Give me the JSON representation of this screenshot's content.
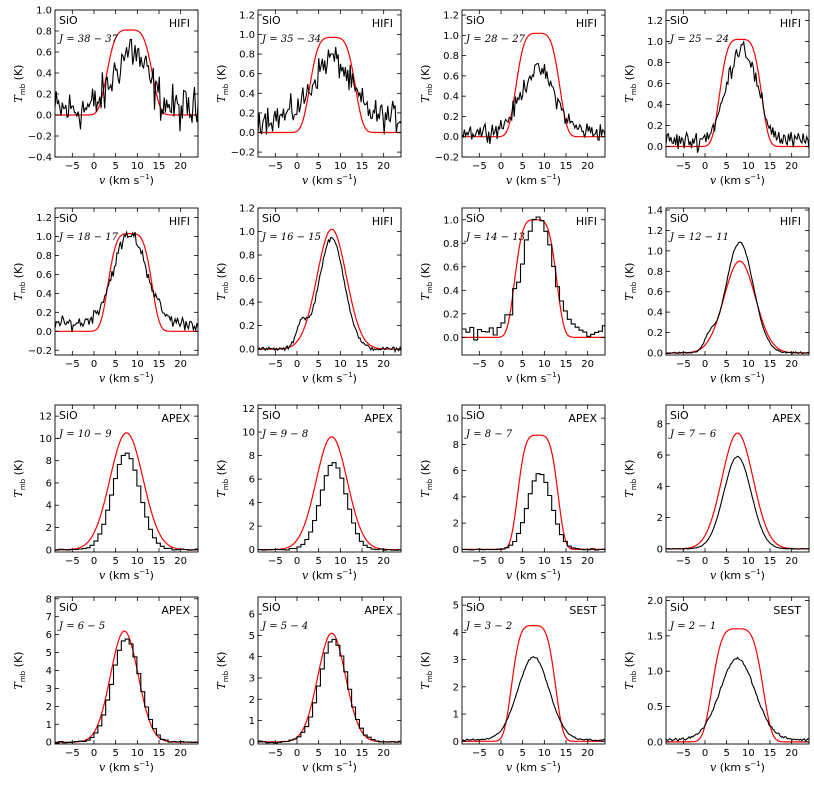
{
  "figure": {
    "xlabel_var": "v",
    "xlabel_units": "(km s",
    "xlabel_exp": "−1",
    "xlabel_close": ")",
    "ylabel_var": "T",
    "ylabel_sub": "mb",
    "ylabel_units": "(K)",
    "species": "SiO",
    "colors": {
      "observed": "#000000",
      "model": "#ff0000"
    }
  },
  "chart_data": [
    {
      "type": "line",
      "molecule": "SiO",
      "transition": "J = 38 − 37",
      "telescope": "HIFI",
      "xlim": [
        -9,
        24
      ],
      "ylim": [
        -0.4,
        1.0
      ],
      "xticks": [
        -5,
        0,
        5,
        10,
        15,
        20
      ],
      "xticklabels": [
        "−5",
        "0",
        "5",
        "10",
        "15",
        "20"
      ],
      "yticks": [
        -0.4,
        -0.2,
        0.0,
        0.2,
        0.4,
        0.6,
        0.8,
        1.0
      ],
      "yticklabels": [
        "−0.4",
        "−0.2",
        "0.0",
        "0.2",
        "0.4",
        "0.6",
        "0.8",
        "1.0"
      ],
      "observed": {
        "shape": "gauss",
        "peak": 0.55,
        "center": 8.5,
        "fwhm": 9,
        "base": 0.05,
        "noise": 0.18,
        "spike": 0.72,
        "hist": false
      },
      "model": {
        "shape": "flat",
        "peak": 0.81,
        "center": 8.2,
        "halfwidth": 5.2,
        "base": 0.0
      }
    },
    {
      "type": "line",
      "molecule": "SiO",
      "transition": "J = 35 − 34",
      "telescope": "HIFI",
      "xlim": [
        -9,
        24
      ],
      "ylim": [
        -0.25,
        1.25
      ],
      "xticks": [
        -5,
        0,
        5,
        10,
        15,
        20
      ],
      "xticklabels": [
        "−5",
        "0",
        "5",
        "10",
        "15",
        "20"
      ],
      "yticks": [
        -0.2,
        0.0,
        0.2,
        0.4,
        0.6,
        0.8,
        1.0,
        1.2
      ],
      "yticklabels": [
        "−0.2",
        "0.0",
        "0.2",
        "0.4",
        "0.6",
        "0.8",
        "1.0",
        "1.2"
      ],
      "observed": {
        "shape": "gauss",
        "peak": 0.6,
        "center": 8.0,
        "fwhm": 10,
        "base": 0.15,
        "noise": 0.13,
        "spike": 0.8,
        "hist": false
      },
      "model": {
        "shape": "flat",
        "peak": 0.97,
        "center": 8.2,
        "halfwidth": 5.2,
        "base": 0.0
      }
    },
    {
      "type": "line",
      "molecule": "SiO",
      "transition": "J = 28 − 27",
      "telescope": "HIFI",
      "xlim": [
        -9,
        24
      ],
      "ylim": [
        -0.2,
        1.25
      ],
      "xticks": [
        -5,
        0,
        5,
        10,
        15,
        20
      ],
      "xticklabels": [
        "−5",
        "0",
        "5",
        "10",
        "15",
        "20"
      ],
      "yticks": [
        -0.2,
        0.0,
        0.2,
        0.4,
        0.6,
        0.8,
        1.0,
        1.2
      ],
      "yticklabels": [
        "−0.2",
        "0.0",
        "0.2",
        "0.4",
        "0.6",
        "0.8",
        "1.0",
        "1.2"
      ],
      "observed": {
        "shape": "gauss",
        "peak": 0.62,
        "center": 8.5,
        "fwhm": 9,
        "base": 0.05,
        "noise": 0.08,
        "spike": 0.72,
        "hist": false
      },
      "model": {
        "shape": "flat",
        "peak": 1.02,
        "center": 8.5,
        "halfwidth": 5.0,
        "base": 0.0
      }
    },
    {
      "type": "line",
      "molecule": "SiO",
      "transition": "J = 25 − 24",
      "telescope": "HIFI",
      "xlim": [
        -9,
        24
      ],
      "ylim": [
        -0.1,
        1.3
      ],
      "xticks": [
        -5,
        0,
        5,
        10,
        15,
        20
      ],
      "xticklabels": [
        "−5",
        "0",
        "5",
        "10",
        "15",
        "20"
      ],
      "yticks": [
        0.0,
        0.2,
        0.4,
        0.6,
        0.8,
        1.0,
        1.2
      ],
      "yticklabels": [
        "0.0",
        "0.2",
        "0.4",
        "0.6",
        "0.8",
        "1.0",
        "1.2"
      ],
      "observed": {
        "shape": "gauss",
        "peak": 0.9,
        "center": 8.5,
        "fwhm": 8,
        "base": 0.05,
        "noise": 0.08,
        "spike": 0.97,
        "hist": false
      },
      "model": {
        "shape": "flat",
        "peak": 1.02,
        "center": 8.2,
        "halfwidth": 4.8,
        "base": 0.0
      }
    },
    {
      "type": "line",
      "molecule": "SiO",
      "transition": "J = 18 − 17",
      "telescope": "HIFI",
      "xlim": [
        -9,
        24
      ],
      "ylim": [
        -0.25,
        1.3
      ],
      "xticks": [
        -5,
        0,
        5,
        10,
        15,
        20
      ],
      "xticklabels": [
        "−5",
        "0",
        "5",
        "10",
        "15",
        "20"
      ],
      "yticks": [
        -0.2,
        0.0,
        0.2,
        0.4,
        0.6,
        0.8,
        1.0,
        1.2
      ],
      "yticklabels": [
        "−0.2",
        "0.0",
        "0.2",
        "0.4",
        "0.6",
        "0.8",
        "1.0",
        "1.2"
      ],
      "observed": {
        "shape": "gauss",
        "peak": 0.95,
        "center": 8.3,
        "fwhm": 9,
        "base": 0.08,
        "noise": 0.06,
        "spike": 1.0,
        "hist": false
      },
      "model": {
        "shape": "flat",
        "peak": 1.03,
        "center": 8.3,
        "halfwidth": 5.0,
        "base": 0.0
      }
    },
    {
      "type": "line",
      "molecule": "SiO",
      "transition": "J = 16 − 15",
      "telescope": "HIFI",
      "xlim": [
        -9,
        24
      ],
      "ylim": [
        -0.05,
        1.2
      ],
      "xticks": [
        -5,
        0,
        5,
        10,
        15,
        20
      ],
      "xticklabels": [
        "−5",
        "0",
        "5",
        "10",
        "15",
        "20"
      ],
      "yticks": [
        0.0,
        0.2,
        0.4,
        0.6,
        0.8,
        1.0,
        1.2
      ],
      "yticklabels": [
        "0.0",
        "0.2",
        "0.4",
        "0.6",
        "0.8",
        "1.0",
        "1.2"
      ],
      "observed": {
        "shape": "gauss",
        "peak": 0.94,
        "center": 8.0,
        "fwhm": 7,
        "base": 0.0,
        "noise": 0.015,
        "spike": 0,
        "hist": false,
        "bump": 0.2
      },
      "model": {
        "shape": "gauss",
        "peak": 1.02,
        "center": 8.0,
        "fwhm": 8.0,
        "base": 0.0
      }
    },
    {
      "type": "line",
      "molecule": "SiO",
      "transition": "J = 14 − 13",
      "telescope": "HIFI",
      "xlim": [
        -9,
        24
      ],
      "ylim": [
        -0.15,
        1.1
      ],
      "xticks": [
        -5,
        0,
        5,
        10,
        15,
        20
      ],
      "xticklabels": [
        "−5",
        "0",
        "5",
        "10",
        "15",
        "20"
      ],
      "yticks": [
        0.0,
        0.2,
        0.4,
        0.6,
        0.8,
        1.0
      ],
      "yticklabels": [
        "0.0",
        "0.2",
        "0.4",
        "0.6",
        "0.8",
        "1.0"
      ],
      "observed": {
        "shape": "gauss",
        "peak": 0.98,
        "center": 8.0,
        "fwhm": 8,
        "base": 0.05,
        "noise": 0.05,
        "spike": 0,
        "hist": true
      },
      "model": {
        "shape": "flat",
        "peak": 1.0,
        "center": 8.0,
        "halfwidth": 4.8,
        "base": 0.0
      }
    },
    {
      "type": "line",
      "molecule": "SiO",
      "transition": "J = 12 − 11",
      "telescope": "HIFI",
      "xlim": [
        -9,
        24
      ],
      "ylim": [
        -0.02,
        1.42
      ],
      "xticks": [
        -5,
        0,
        5,
        10,
        15,
        20
      ],
      "xticklabels": [
        "−5",
        "0",
        "5",
        "10",
        "15",
        "20"
      ],
      "yticks": [
        0.0,
        0.2,
        0.4,
        0.6,
        0.8,
        1.0,
        1.2,
        1.4
      ],
      "yticklabels": [
        "0.0",
        "0.2",
        "0.4",
        "0.6",
        "0.8",
        "1.0",
        "1.2",
        "1.4"
      ],
      "observed": {
        "shape": "gauss",
        "peak": 1.08,
        "center": 8.0,
        "fwhm": 7.5,
        "base": 0.0,
        "noise": 0.008,
        "spike": 0,
        "hist": false,
        "bump": 0.12
      },
      "model": {
        "shape": "gauss",
        "peak": 0.9,
        "center": 8.0,
        "fwhm": 8.5,
        "base": 0.0
      }
    },
    {
      "type": "line",
      "molecule": "SiO",
      "transition": "J = 10 − 9",
      "telescope": "APEX",
      "xlim": [
        -9,
        24
      ],
      "ylim": [
        -0.2,
        13
      ],
      "xticks": [
        -5,
        0,
        5,
        10,
        15,
        20
      ],
      "xticklabels": [
        "−5",
        "0",
        "5",
        "10",
        "15",
        "20"
      ],
      "yticks": [
        0,
        2,
        4,
        6,
        8,
        10,
        12
      ],
      "yticklabels": [
        "0",
        "2",
        "4",
        "6",
        "8",
        "10",
        "12"
      ],
      "observed": {
        "shape": "gauss",
        "peak": 8.7,
        "center": 7.0,
        "fwhm": 7.5,
        "base": 0.0,
        "noise": 0.05,
        "spike": 0,
        "hist": true
      },
      "model": {
        "shape": "gauss",
        "peak": 10.5,
        "center": 7.5,
        "fwhm": 9.0,
        "base": 0.0
      }
    },
    {
      "type": "line",
      "molecule": "SiO",
      "transition": "J = 9 − 8",
      "telescope": "APEX",
      "xlim": [
        -9,
        24
      ],
      "ylim": [
        -0.2,
        12.3
      ],
      "xticks": [
        -5,
        0,
        5,
        10,
        15,
        20
      ],
      "xticklabels": [
        "−5",
        "0",
        "5",
        "10",
        "15",
        "20"
      ],
      "yticks": [
        0,
        2,
        4,
        6,
        8,
        10,
        12
      ],
      "yticklabels": [
        "0",
        "2",
        "4",
        "6",
        "8",
        "10",
        "12"
      ],
      "observed": {
        "shape": "gauss",
        "peak": 7.4,
        "center": 8.0,
        "fwhm": 7.0,
        "base": 0.0,
        "noise": 0.05,
        "spike": 0,
        "hist": true
      },
      "model": {
        "shape": "gauss",
        "peak": 9.6,
        "center": 8.0,
        "fwhm": 8.5,
        "base": 0.0
      }
    },
    {
      "type": "line",
      "molecule": "SiO",
      "transition": "J = 8 − 7",
      "telescope": "APEX",
      "xlim": [
        -9,
        24
      ],
      "ylim": [
        -0.2,
        11
      ],
      "xticks": [
        -5,
        0,
        5,
        10,
        15,
        20
      ],
      "xticklabels": [
        "−5",
        "0",
        "5",
        "10",
        "15",
        "20"
      ],
      "yticks": [
        0,
        2,
        4,
        6,
        8,
        10
      ],
      "yticklabels": [
        "0",
        "2",
        "4",
        "6",
        "8",
        "10"
      ],
      "observed": {
        "shape": "gauss",
        "peak": 5.8,
        "center": 8.5,
        "fwhm": 6.5,
        "base": 0.0,
        "noise": 0.04,
        "spike": 0,
        "hist": true
      },
      "model": {
        "shape": "flat",
        "peak": 8.7,
        "center": 8.5,
        "halfwidth": 4.6,
        "base": 0.0
      }
    },
    {
      "type": "line",
      "molecule": "SiO",
      "transition": "J = 7 − 6",
      "telescope": "APEX",
      "xlim": [
        -9,
        24
      ],
      "ylim": [
        -0.2,
        9.2
      ],
      "xticks": [
        -5,
        0,
        5,
        10,
        15,
        20
      ],
      "xticklabels": [
        "−5",
        "0",
        "5",
        "10",
        "15",
        "20"
      ],
      "yticks": [
        0,
        2,
        4,
        6,
        8
      ],
      "yticklabels": [
        "0",
        "2",
        "4",
        "6",
        "8"
      ],
      "observed": {
        "shape": "gauss",
        "peak": 5.9,
        "center": 7.5,
        "fwhm": 7.5,
        "base": 0.0,
        "noise": 0.02,
        "spike": 0,
        "hist": false
      },
      "model": {
        "shape": "gauss",
        "peak": 7.4,
        "center": 7.5,
        "fwhm": 8.5,
        "base": 0.0
      }
    },
    {
      "type": "line",
      "molecule": "SiO",
      "transition": "J = 6 − 5",
      "telescope": "APEX",
      "xlim": [
        -9,
        24
      ],
      "ylim": [
        -0.1,
        8.1
      ],
      "xticks": [
        -5,
        0,
        5,
        10,
        15,
        20
      ],
      "xticklabels": [
        "−5",
        "0",
        "5",
        "10",
        "15",
        "20"
      ],
      "yticks": [
        0,
        1,
        2,
        3,
        4,
        5,
        6,
        7,
        8
      ],
      "yticklabels": [
        "0",
        "1",
        "2",
        "3",
        "4",
        "5",
        "6",
        "7",
        "8"
      ],
      "observed": {
        "shape": "gauss",
        "peak": 5.8,
        "center": 7.0,
        "fwhm": 7.5,
        "base": 0.0,
        "noise": 0.04,
        "spike": 0,
        "hist": true
      },
      "model": {
        "shape": "gauss",
        "peak": 6.2,
        "center": 7.0,
        "fwhm": 7.5,
        "base": 0.0
      }
    },
    {
      "type": "line",
      "molecule": "SiO",
      "transition": "J = 5 − 4",
      "telescope": "APEX",
      "xlim": [
        -9,
        24
      ],
      "ylim": [
        -0.1,
        6.8
      ],
      "xticks": [
        -5,
        0,
        5,
        10,
        15,
        20
      ],
      "xticklabels": [
        "−5",
        "0",
        "5",
        "10",
        "15",
        "20"
      ],
      "yticks": [
        0,
        1,
        2,
        3,
        4,
        5,
        6
      ],
      "yticklabels": [
        "0",
        "1",
        "2",
        "3",
        "4",
        "5",
        "6"
      ],
      "observed": {
        "shape": "gauss",
        "peak": 4.8,
        "center": 8.0,
        "fwhm": 7.5,
        "base": 0.0,
        "noise": 0.04,
        "spike": 0,
        "hist": true
      },
      "model": {
        "shape": "gauss",
        "peak": 5.1,
        "center": 8.0,
        "fwhm": 7.5,
        "base": 0.0
      }
    },
    {
      "type": "line",
      "molecule": "SiO",
      "transition": "J = 3 − 2",
      "telescope": "SEST",
      "xlim": [
        -9,
        24
      ],
      "ylim": [
        -0.1,
        5.3
      ],
      "xticks": [
        -5,
        0,
        5,
        10,
        15,
        20
      ],
      "xticklabels": [
        "−5",
        "0",
        "5",
        "10",
        "15",
        "20"
      ],
      "yticks": [
        0,
        1,
        2,
        3,
        4,
        5
      ],
      "yticklabels": [
        "0",
        "1",
        "2",
        "3",
        "4",
        "5"
      ],
      "observed": {
        "shape": "gauss",
        "peak": 3.05,
        "center": 7.5,
        "fwhm": 8.5,
        "base": 0.05,
        "noise": 0.03,
        "spike": 0,
        "hist": false
      },
      "model": {
        "shape": "flat",
        "peak": 4.25,
        "center": 7.5,
        "halfwidth": 5.0,
        "base": 0.0
      }
    },
    {
      "type": "line",
      "molecule": "SiO",
      "transition": "J = 2 − 1",
      "telescope": "SEST",
      "xlim": [
        -9,
        24
      ],
      "ylim": [
        -0.03,
        2.05
      ],
      "xticks": [
        -5,
        0,
        5,
        10,
        15,
        20
      ],
      "xticklabels": [
        "−5",
        "0",
        "5",
        "10",
        "15",
        "20"
      ],
      "yticks": [
        0.0,
        0.5,
        1.0,
        1.5,
        2.0
      ],
      "yticklabels": [
        "0.0",
        "0.5",
        "1.0",
        "1.5",
        "2.0"
      ],
      "observed": {
        "shape": "gauss",
        "peak": 1.15,
        "center": 7.5,
        "fwhm": 9.5,
        "base": 0.03,
        "noise": 0.015,
        "spike": 0,
        "hist": false
      },
      "model": {
        "shape": "flat",
        "peak": 1.6,
        "center": 7.5,
        "halfwidth": 5.8,
        "base": 0.0
      }
    }
  ]
}
